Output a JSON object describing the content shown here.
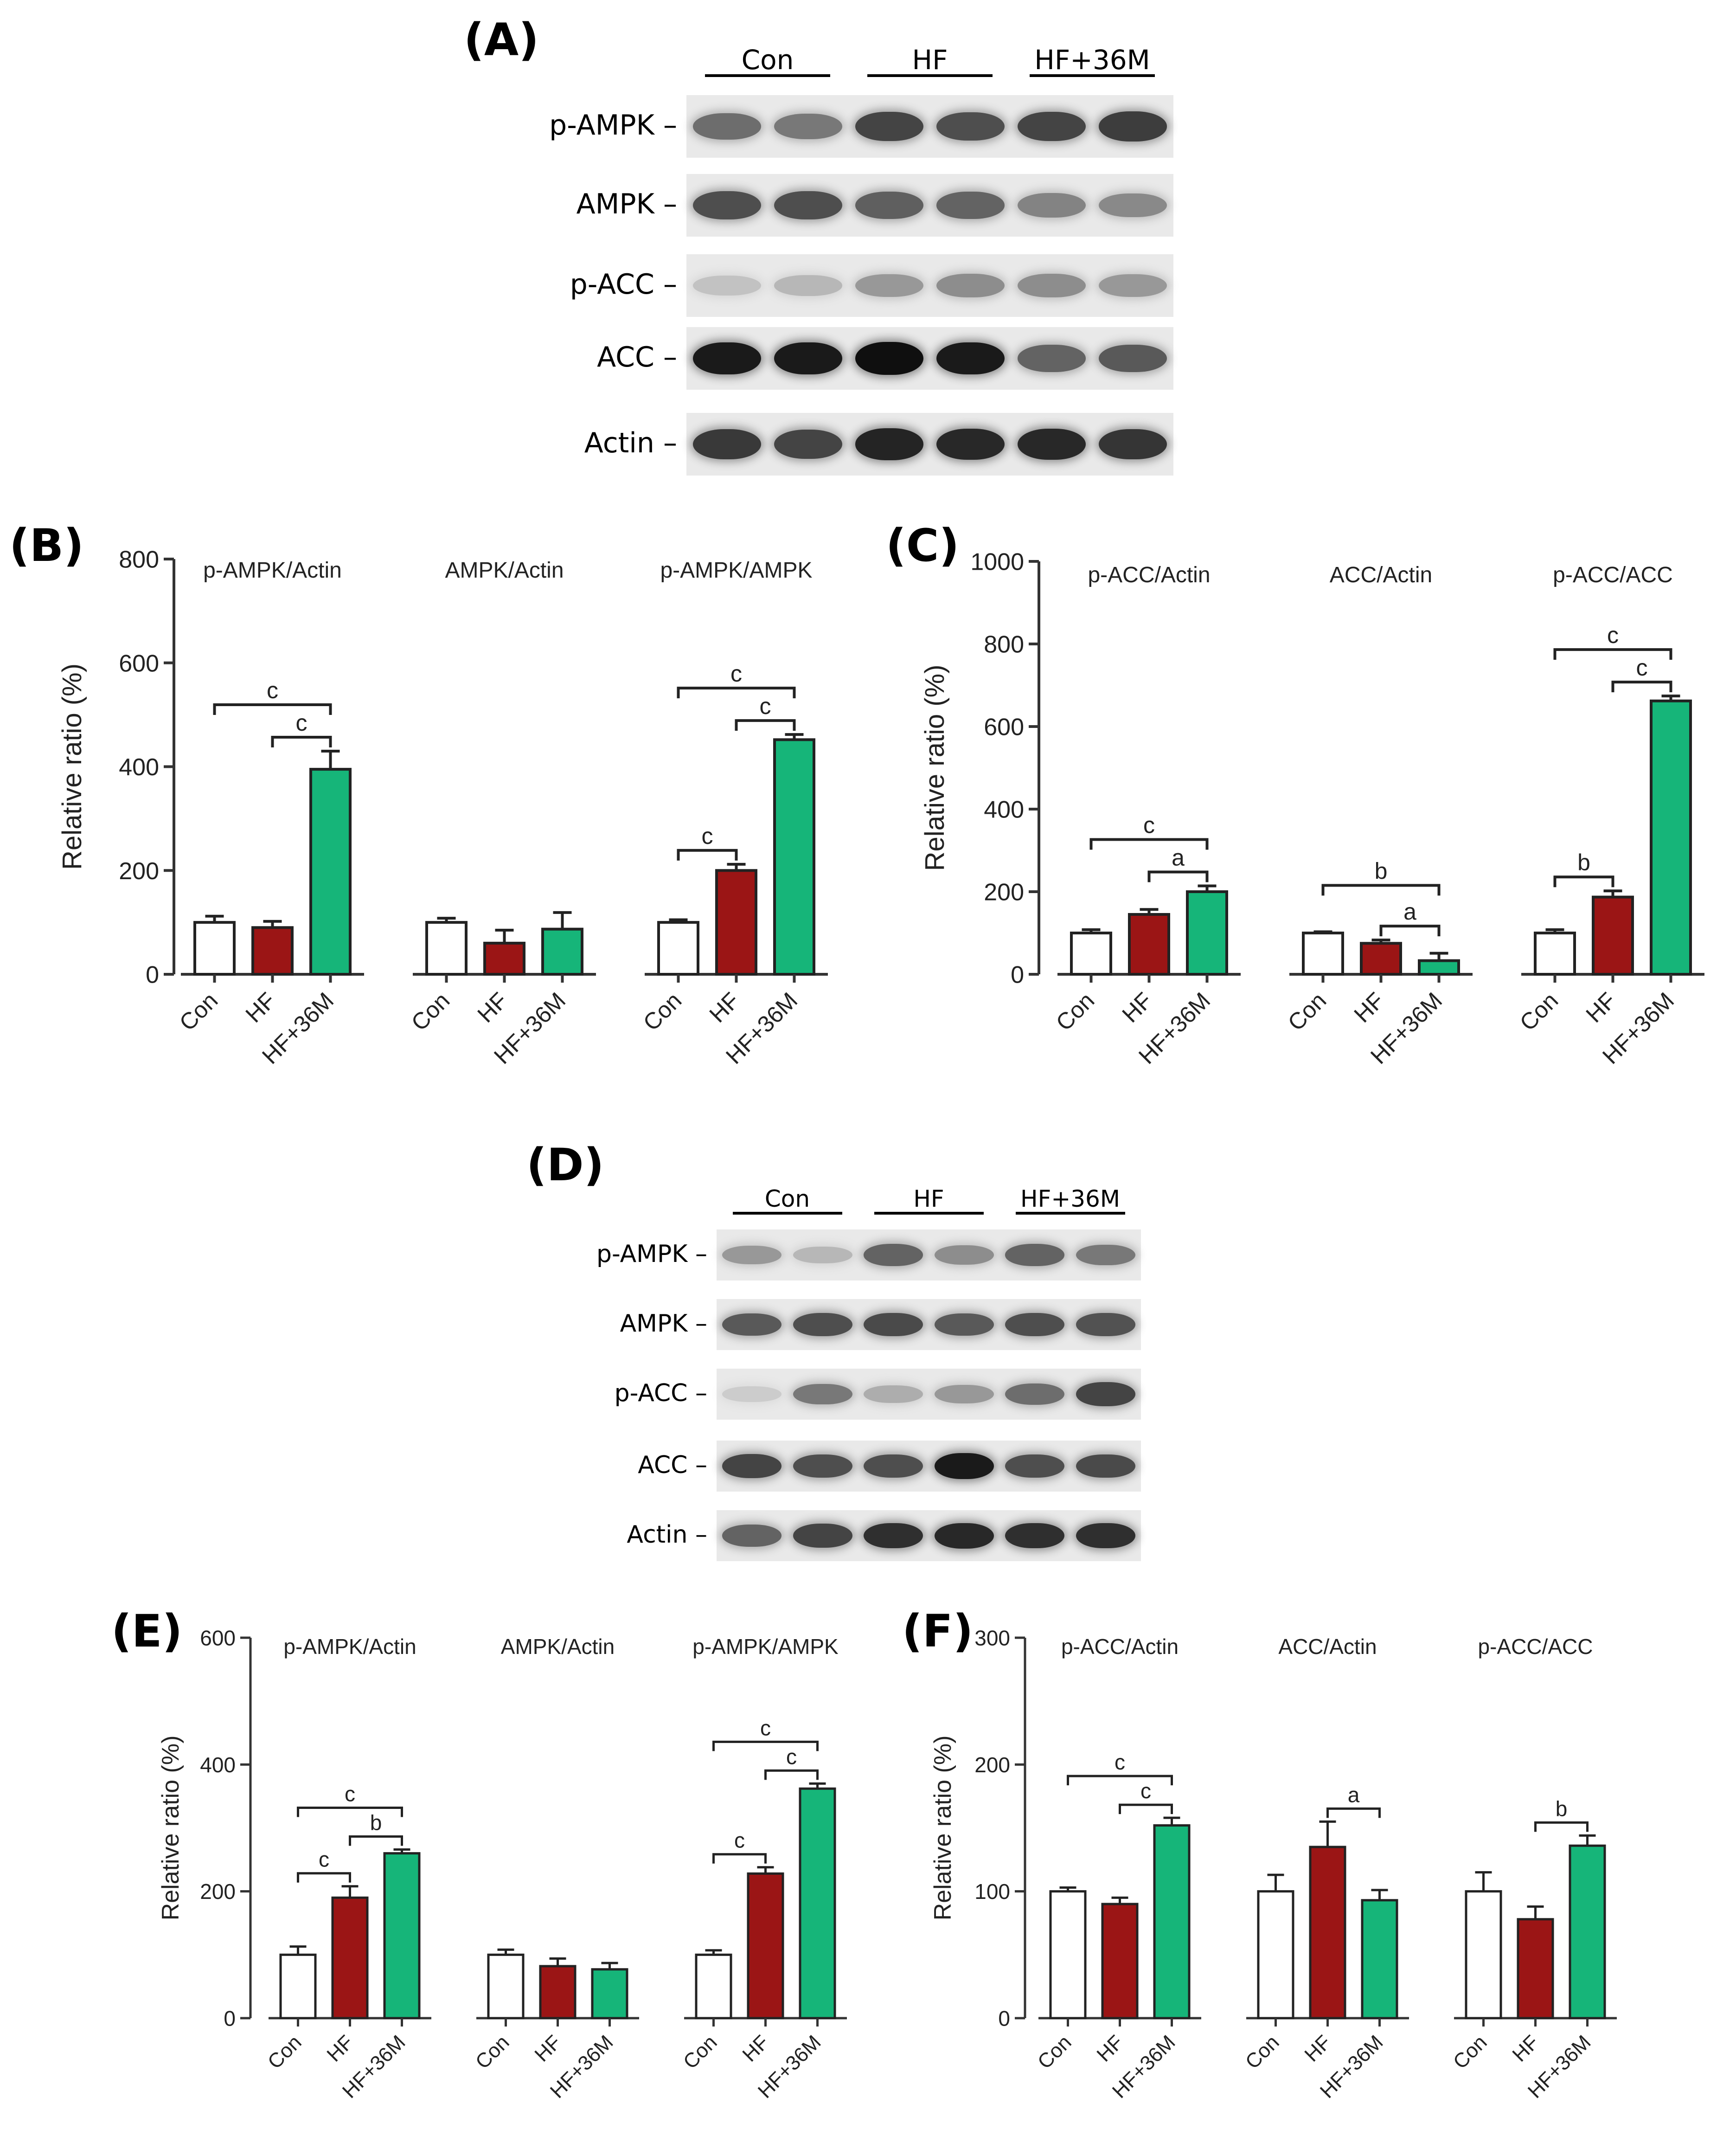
{
  "panel_labels": {
    "A": "(A)",
    "B": "(B)",
    "C": "(C)",
    "D": "(D)",
    "E": "(E)",
    "F": "(F)"
  },
  "blotA": {
    "groups": [
      "Con",
      "HF",
      "HF+36M"
    ],
    "rows": [
      {
        "label": "p-AMPK –",
        "intensity": [
          0.55,
          0.5,
          0.75,
          0.7,
          0.75,
          0.78
        ]
      },
      {
        "label": "AMPK –",
        "intensity": [
          0.7,
          0.7,
          0.62,
          0.6,
          0.45,
          0.42
        ]
      },
      {
        "label": "p-ACC –",
        "intensity": [
          0.15,
          0.2,
          0.35,
          0.4,
          0.4,
          0.35
        ]
      },
      {
        "label": "ACC –",
        "intensity": [
          0.95,
          0.95,
          1.0,
          0.95,
          0.6,
          0.65
        ]
      },
      {
        "label": "Actin –",
        "intensity": [
          0.8,
          0.75,
          0.9,
          0.88,
          0.88,
          0.82
        ]
      }
    ]
  },
  "blotD": {
    "groups": [
      "Con",
      "HF",
      "HF+36M"
    ],
    "rows": [
      {
        "label": "p-AMPK –",
        "intensity": [
          0.35,
          0.2,
          0.6,
          0.4,
          0.6,
          0.5
        ]
      },
      {
        "label": "AMPK –",
        "intensity": [
          0.65,
          0.7,
          0.72,
          0.65,
          0.7,
          0.68
        ]
      },
      {
        "label": "p-ACC –",
        "intensity": [
          0.1,
          0.5,
          0.25,
          0.35,
          0.55,
          0.75
        ]
      },
      {
        "label": "ACC –",
        "intensity": [
          0.75,
          0.7,
          0.7,
          0.95,
          0.7,
          0.72
        ]
      },
      {
        "label": "Actin –",
        "intensity": [
          0.6,
          0.75,
          0.85,
          0.88,
          0.85,
          0.85
        ]
      }
    ]
  },
  "colors": {
    "con": "#ffffff",
    "hf": "#9b1515",
    "hf36m": "#16b579"
  },
  "chart_data": [
    {
      "id": "B",
      "type": "bar",
      "ylabel": "Relative ratio (%)",
      "ylim": [
        0,
        800
      ],
      "yticks": [
        0,
        200,
        400,
        600,
        800
      ],
      "categories": [
        "Con",
        "HF",
        "HF+36M"
      ],
      "groups": [
        {
          "title": "p-AMPK/Actin",
          "values": [
            100,
            90,
            395
          ],
          "errors": [
            12,
            12,
            35
          ],
          "sig": [
            {
              "from": 0,
              "to": 2,
              "label": "c"
            },
            {
              "from": 1,
              "to": 2,
              "label": "c"
            }
          ]
        },
        {
          "title": "AMPK/Actin",
          "values": [
            100,
            60,
            87
          ],
          "errors": [
            8,
            25,
            32
          ],
          "sig": []
        },
        {
          "title": "p-AMPK/AMPK",
          "values": [
            100,
            200,
            452
          ],
          "errors": [
            5,
            12,
            10
          ],
          "sig": [
            {
              "from": 0,
              "to": 1,
              "label": "c"
            },
            {
              "from": 0,
              "to": 2,
              "label": "c"
            },
            {
              "from": 1,
              "to": 2,
              "label": "c"
            }
          ]
        }
      ]
    },
    {
      "id": "C",
      "type": "bar",
      "ylabel": "Relative ratio (%)",
      "ylim": [
        0,
        1000
      ],
      "yticks": [
        0,
        200,
        400,
        600,
        800,
        1000
      ],
      "categories": [
        "Con",
        "HF",
        "HF+36M"
      ],
      "groups": [
        {
          "title": "p-ACC/Actin",
          "values": [
            100,
            145,
            200
          ],
          "errors": [
            8,
            12,
            14
          ],
          "sig": [
            {
              "from": 0,
              "to": 2,
              "label": "c"
            },
            {
              "from": 1,
              "to": 2,
              "label": "a"
            }
          ]
        },
        {
          "title": "ACC/Actin",
          "values": [
            100,
            75,
            33
          ],
          "errors": [
            3,
            8,
            18
          ],
          "sig": [
            {
              "from": 0,
              "to": 2,
              "label": "b"
            },
            {
              "from": 1,
              "to": 2,
              "label": "a"
            }
          ]
        },
        {
          "title": "p-ACC/ACC",
          "values": [
            100,
            187,
            662
          ],
          "errors": [
            8,
            15,
            12
          ],
          "sig": [
            {
              "from": 0,
              "to": 1,
              "label": "b"
            },
            {
              "from": 0,
              "to": 2,
              "label": "c"
            },
            {
              "from": 1,
              "to": 2,
              "label": "c"
            }
          ]
        }
      ]
    },
    {
      "id": "E",
      "type": "bar",
      "ylabel": "Relative ratio (%)",
      "ylim": [
        0,
        600
      ],
      "yticks": [
        0,
        200,
        400,
        600
      ],
      "categories": [
        "Con",
        "HF",
        "HF+36M"
      ],
      "groups": [
        {
          "title": "p-AMPK/Actin",
          "values": [
            100,
            190,
            260
          ],
          "errors": [
            13,
            18,
            6
          ],
          "sig": [
            {
              "from": 0,
              "to": 1,
              "label": "c"
            },
            {
              "from": 0,
              "to": 2,
              "label": "c"
            },
            {
              "from": 1,
              "to": 2,
              "label": "b"
            }
          ]
        },
        {
          "title": "AMPK/Actin",
          "values": [
            100,
            82,
            77
          ],
          "errors": [
            8,
            12,
            10
          ],
          "sig": []
        },
        {
          "title": "p-AMPK/AMPK",
          "values": [
            100,
            228,
            362
          ],
          "errors": [
            7,
            10,
            8
          ],
          "sig": [
            {
              "from": 0,
              "to": 1,
              "label": "c"
            },
            {
              "from": 0,
              "to": 2,
              "label": "c"
            },
            {
              "from": 1,
              "to": 2,
              "label": "c"
            }
          ]
        }
      ]
    },
    {
      "id": "F",
      "type": "bar",
      "ylabel": "Relative ratio (%)",
      "ylim": [
        0,
        300
      ],
      "yticks": [
        0,
        100,
        200,
        300
      ],
      "categories": [
        "Con",
        "HF",
        "HF+36M"
      ],
      "groups": [
        {
          "title": "p-ACC/Actin",
          "values": [
            100,
            90,
            152
          ],
          "errors": [
            3,
            5,
            6
          ],
          "sig": [
            {
              "from": 0,
              "to": 2,
              "label": "c"
            },
            {
              "from": 1,
              "to": 2,
              "label": "c"
            }
          ]
        },
        {
          "title": "ACC/Actin",
          "values": [
            100,
            135,
            93
          ],
          "errors": [
            13,
            20,
            8
          ],
          "sig": [
            {
              "from": 1,
              "to": 2,
              "label": "a"
            }
          ]
        },
        {
          "title": "p-ACC/ACC",
          "values": [
            100,
            78,
            136
          ],
          "errors": [
            15,
            10,
            8
          ],
          "sig": [
            {
              "from": 1,
              "to": 2,
              "label": "b"
            }
          ]
        }
      ]
    }
  ]
}
